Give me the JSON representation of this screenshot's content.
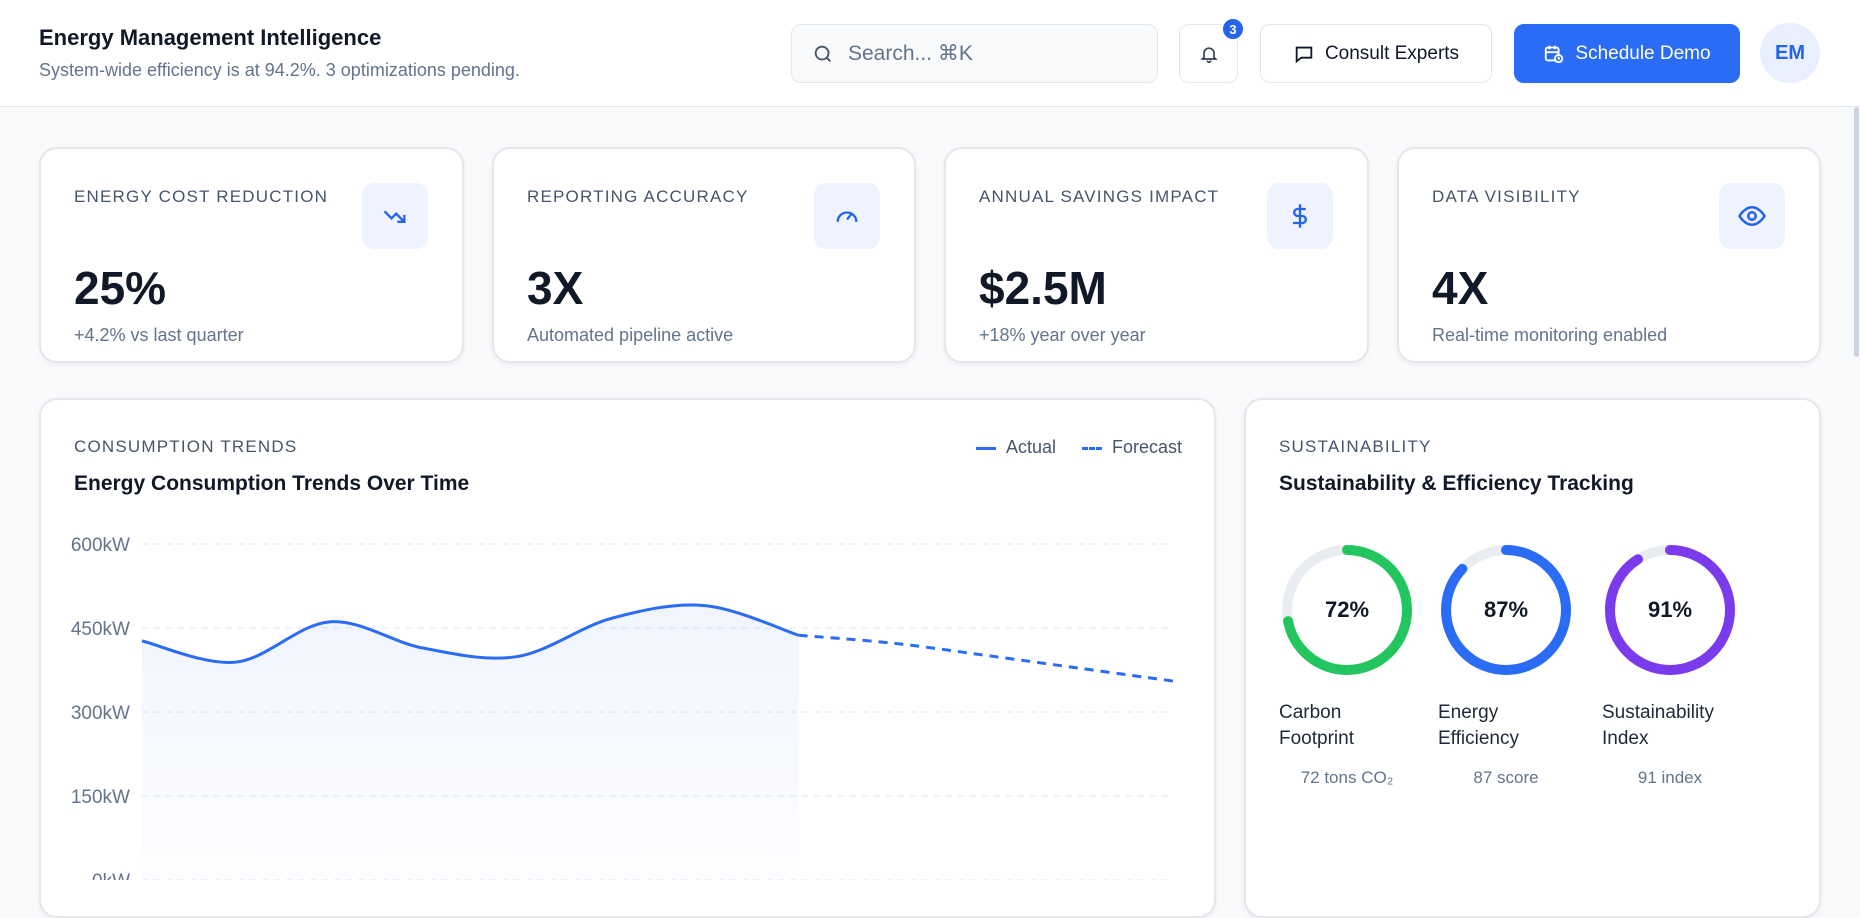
{
  "header": {
    "title": "Energy Management Intelligence",
    "subtitle": "System-wide efficiency is at 94.2%. 3 optimizations pending.",
    "search_placeholder": "Search... ⌘K",
    "notifications_count": "3",
    "consult_label": "Consult Experts",
    "demo_label": "Schedule Demo",
    "avatar_initials": "EM"
  },
  "stats": [
    {
      "label": "ENERGY COST REDUCTION",
      "value": "25%",
      "sub": "+4.2% vs last quarter",
      "icon": "trending-down-icon"
    },
    {
      "label": "REPORTING ACCURACY",
      "value": "3X",
      "sub": "Automated pipeline active",
      "icon": "gauge-icon"
    },
    {
      "label": "ANNUAL SAVINGS IMPACT",
      "value": "$2.5M",
      "sub": "+18% year over year",
      "icon": "dollar-icon"
    },
    {
      "label": "DATA VISIBILITY",
      "value": "4X",
      "sub": "Real-time monitoring enabled",
      "icon": "eye-icon"
    }
  ],
  "consumption": {
    "section_label": "CONSUMPTION TRENDS",
    "title": "Energy Consumption Trends Over Time",
    "legend": {
      "actual": "Actual",
      "forecast": "Forecast"
    }
  },
  "chart_data": {
    "type": "line",
    "title": "Energy Consumption Trends Over Time",
    "y_ticks": [
      "600kW",
      "450kW",
      "300kW",
      "150kW",
      "0kW"
    ],
    "ylim": [
      0,
      600
    ],
    "grid": true,
    "legend_position": "top-right",
    "series": [
      {
        "name": "Actual",
        "x": [
          0,
          1,
          2,
          3,
          4,
          5,
          6,
          7
        ],
        "values": [
          427,
          389,
          461,
          414,
          399,
          467,
          490,
          437
        ],
        "style": "solid",
        "color": "#2b6cf6"
      },
      {
        "name": "Forecast",
        "x": [
          7,
          8,
          9,
          10,
          11
        ],
        "values": [
          437,
          423,
          401,
          378,
          355
        ],
        "style": "dashed",
        "color": "#2b6cf6"
      }
    ]
  },
  "sustainability": {
    "section_label": "SUSTAINABILITY",
    "title": "Sustainability & Efficiency Tracking",
    "gauges": [
      {
        "pct_label": "72%",
        "percent": 72,
        "name_line1": "Carbon",
        "name_line2": "Footprint",
        "value": "72 tons CO₂",
        "color": "#22c55e"
      },
      {
        "pct_label": "87%",
        "percent": 87,
        "name_line1": "Energy",
        "name_line2": "Efficiency",
        "value": "87 score",
        "color": "#2b6cf6"
      },
      {
        "pct_label": "91%",
        "percent": 91,
        "name_line1": "Sustainability",
        "name_line2": "Index",
        "value": "91 index",
        "color": "#7c3aed"
      }
    ]
  }
}
